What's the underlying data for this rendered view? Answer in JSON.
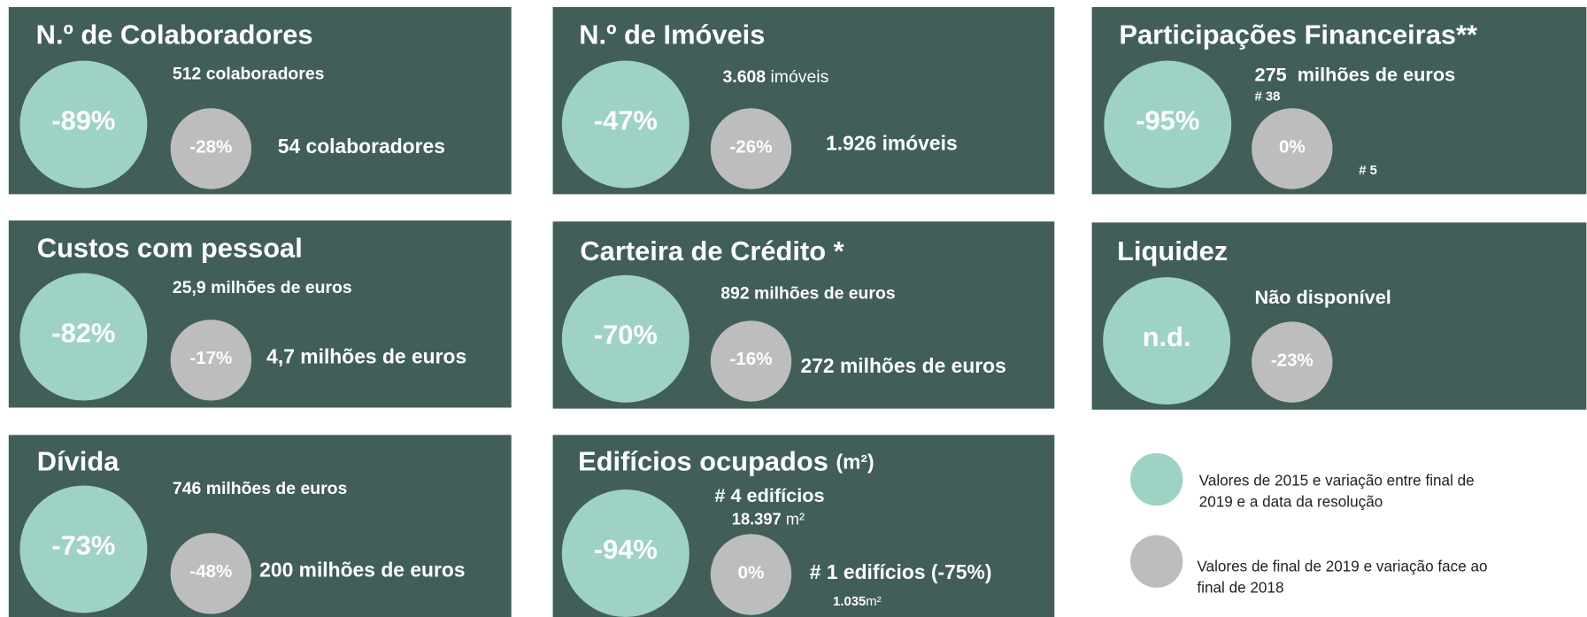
{
  "panels": [
    {
      "title": "N.º de Colaboradores",
      "change_2015": "-89%",
      "change_2019": "-28%",
      "value_2015": "512 colaboradores",
      "value_2019": "54 colaboradores"
    },
    {
      "title": "N.º de Imóveis",
      "change_2015": "-47%",
      "change_2019": "-26%",
      "value_2015": {
        "number": "3.608",
        "unit": "imóveis"
      },
      "value_2019": "1.926 imóveis"
    },
    {
      "title": "Participações Financeiras**",
      "change_2015": "-95%",
      "change_2019": "0%",
      "value_2015": "275  milhões de euros",
      "count_2015": "# 38",
      "count_2019": "# 5"
    },
    {
      "title": "Custos com pessoal",
      "change_2015": "-82%",
      "change_2019": "-17%",
      "value_2015": "25,9 milhões de euros",
      "value_2019": "4,7 milhões de euros"
    },
    {
      "title": "Carteira de Crédito *",
      "change_2015": "-70%",
      "change_2019": "-16%",
      "value_2015": "892 milhões de euros",
      "value_2019": "272 milhões de euros"
    },
    {
      "title": "Liquidez",
      "change_2015": "n.d.",
      "change_2019": "-23%",
      "value_2015": "Não disponível"
    },
    {
      "title": "Dívida",
      "change_2015": "-73%",
      "change_2019": "-48%",
      "value_2015": "746 milhões de euros",
      "value_2019": "200 milhões de euros"
    },
    {
      "title": "Edifícios ocupados",
      "title_unit": "(m²)",
      "change_2015": "-94%",
      "change_2019": "0%",
      "count_2015": "# 4 edifícios",
      "value_2015": {
        "number": "18.397",
        "unit": "m²"
      },
      "count_2019": "# 1 edifícios (-75%)",
      "value_2019": {
        "number": "1.035",
        "unit": "m²"
      }
    }
  ],
  "legend": [
    {
      "lines": [
        "Valores de 2015 e variação entre final de",
        "2019 e a data da resolução"
      ]
    },
    {
      "lines": [
        "Valores de final de 2019 e variação face ao",
        "final de 2018"
      ]
    }
  ]
}
